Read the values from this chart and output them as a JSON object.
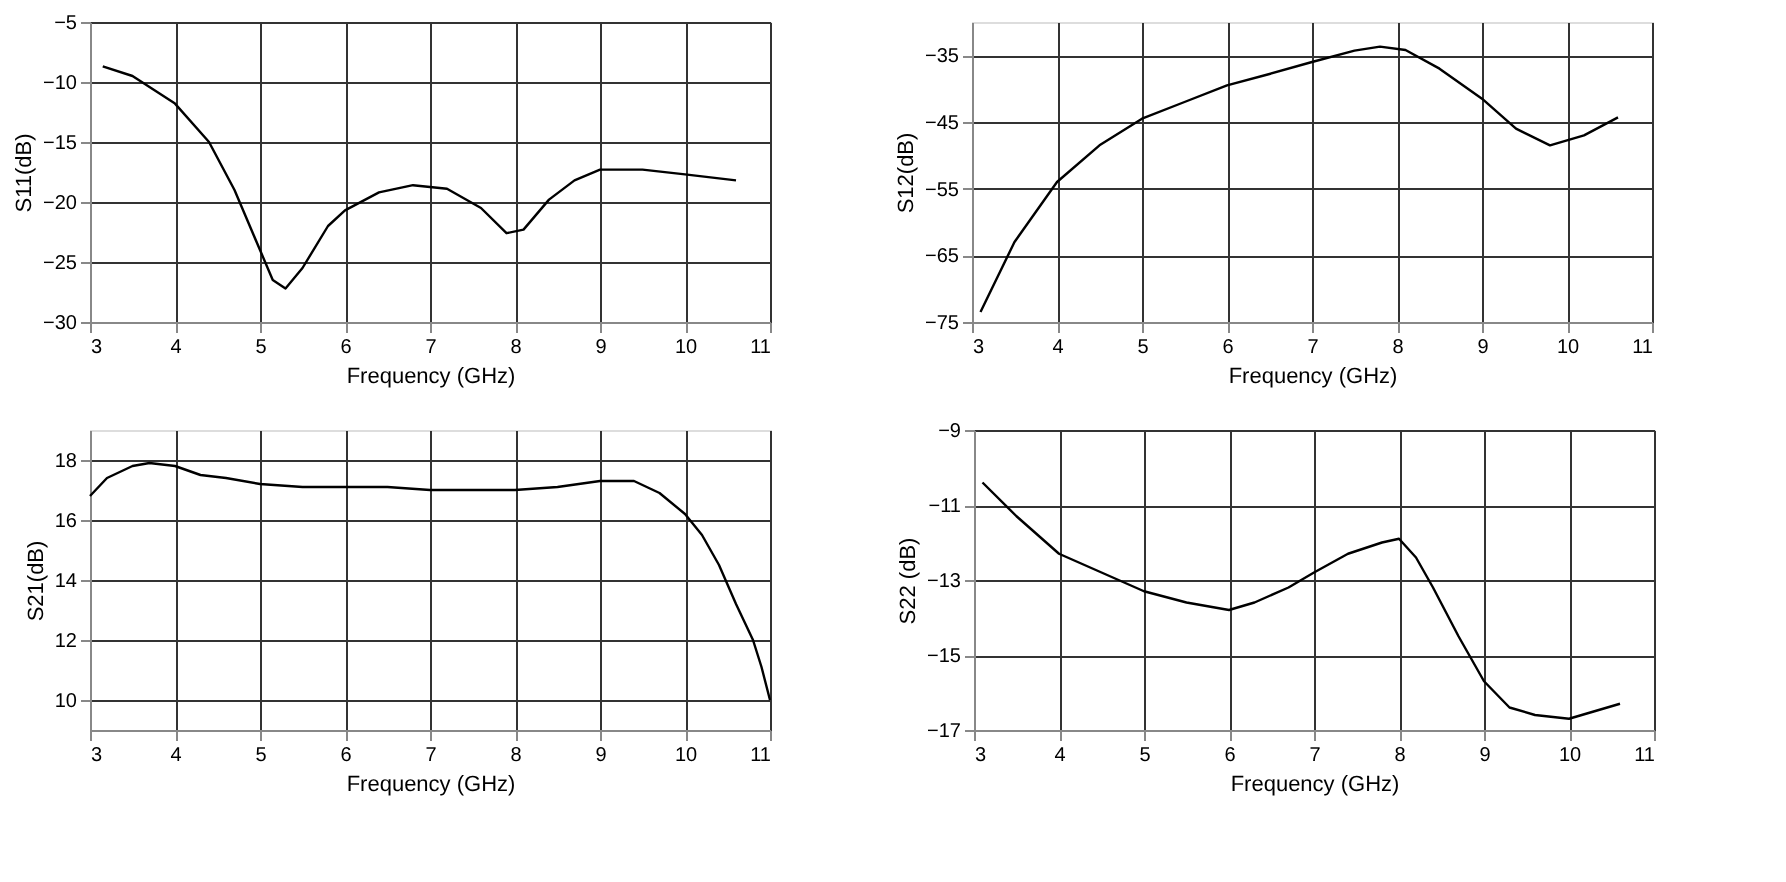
{
  "chart_data": [
    {
      "type": "line",
      "xlabel": "Frequency (GHz)",
      "ylabel": "S11(dB)",
      "xlim": [
        3,
        11
      ],
      "xticks": [
        3,
        4,
        5,
        6,
        7,
        8,
        9,
        10,
        11
      ],
      "ylim": [
        -30,
        -5
      ],
      "yticks": [
        -30,
        -25,
        -20,
        -15,
        -10,
        -5
      ],
      "grid": true,
      "series": [
        {
          "color": "#000000",
          "x": [
            3.15,
            3.5,
            4.0,
            4.4,
            4.7,
            5.0,
            5.15,
            5.3,
            5.5,
            5.8,
            6.0,
            6.4,
            6.8,
            7.2,
            7.6,
            7.9,
            8.1,
            8.4,
            8.7,
            9.0,
            9.5,
            10.0,
            10.6
          ],
          "values": [
            -8.7,
            -9.5,
            -11.8,
            -15,
            -19,
            -24,
            -26.5,
            -27.2,
            -25.5,
            -22,
            -20.7,
            -19.2,
            -18.6,
            -18.9,
            -20.5,
            -22.6,
            -22.3,
            -19.8,
            -18.2,
            -17.3,
            -17.3,
            -17.7,
            -18.2
          ]
        }
      ]
    },
    {
      "type": "line",
      "xlabel": "Frequency (GHz)",
      "ylabel": "S12(dB)",
      "xlim": [
        3,
        11
      ],
      "xticks": [
        3,
        4,
        5,
        6,
        7,
        8,
        9,
        10,
        11
      ],
      "ylim": [
        -75,
        -30
      ],
      "yticks": [
        -75,
        -65,
        -55,
        -45,
        -35
      ],
      "grid": true,
      "series": [
        {
          "color": "#000000",
          "x": [
            3.1,
            3.5,
            4.0,
            4.5,
            5.0,
            5.5,
            6.0,
            6.5,
            7.0,
            7.5,
            7.8,
            8.1,
            8.5,
            9.0,
            9.4,
            9.8,
            10.2,
            10.6
          ],
          "values": [
            -73.5,
            -63,
            -54,
            -48.5,
            -44.5,
            -42,
            -39.5,
            -37.8,
            -36,
            -34.3,
            -33.7,
            -34.2,
            -37,
            -41.5,
            -46,
            -48.5,
            -47,
            -44.3
          ]
        }
      ]
    },
    {
      "type": "line",
      "xlabel": "Frequency (GHz)",
      "ylabel": "S21(dB)",
      "xlim": [
        3,
        11
      ],
      "xticks": [
        3,
        4,
        5,
        6,
        7,
        8,
        9,
        10,
        11
      ],
      "ylim": [
        9,
        19
      ],
      "yticks": [
        10,
        12,
        14,
        16,
        18
      ],
      "grid": true,
      "series": [
        {
          "color": "#000000",
          "x": [
            3.0,
            3.2,
            3.5,
            3.7,
            4.0,
            4.3,
            4.6,
            5.0,
            5.5,
            6.0,
            6.5,
            7.0,
            7.5,
            8.0,
            8.5,
            9.0,
            9.4,
            9.7,
            10.0,
            10.2,
            10.4,
            10.6,
            10.8,
            10.9,
            11.0
          ],
          "values": [
            16.8,
            17.4,
            17.8,
            17.9,
            17.8,
            17.5,
            17.4,
            17.2,
            17.1,
            17.1,
            17.1,
            17.0,
            17.0,
            17.0,
            17.1,
            17.3,
            17.3,
            16.9,
            16.2,
            15.5,
            14.5,
            13.2,
            12.0,
            11.1,
            10.0
          ]
        }
      ]
    },
    {
      "type": "line",
      "xlabel": "Frequency (GHz)",
      "ylabel": "S22 (dB)",
      "xlim": [
        3,
        11
      ],
      "xticks": [
        3,
        4,
        5,
        6,
        7,
        8,
        9,
        10,
        11
      ],
      "ylim": [
        -17,
        -9
      ],
      "yticks": [
        -17,
        -15,
        -13,
        -11,
        -9
      ],
      "grid": true,
      "series": [
        {
          "color": "#000000",
          "x": [
            3.1,
            3.5,
            4.0,
            4.5,
            5.0,
            5.5,
            6.0,
            6.3,
            6.7,
            7.0,
            7.4,
            7.8,
            8.0,
            8.2,
            8.4,
            8.7,
            9.0,
            9.3,
            9.6,
            10.0,
            10.3,
            10.6
          ],
          "values": [
            -10.4,
            -11.3,
            -12.3,
            -12.8,
            -13.3,
            -13.6,
            -13.8,
            -13.6,
            -13.2,
            -12.8,
            -12.3,
            -12.0,
            -11.9,
            -12.4,
            -13.2,
            -14.5,
            -15.7,
            -16.4,
            -16.6,
            -16.7,
            -16.5,
            -16.3
          ]
        }
      ]
    }
  ]
}
